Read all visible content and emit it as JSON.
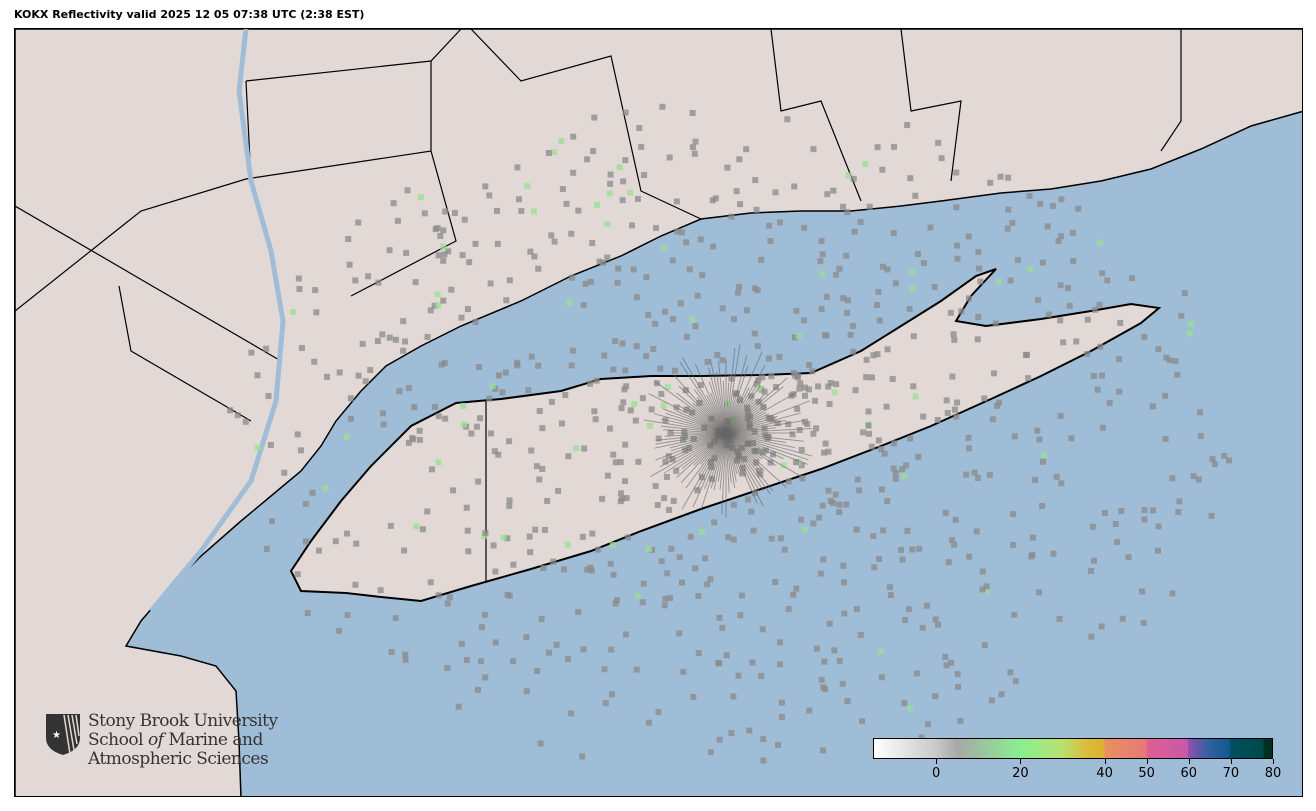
{
  "title": "KOKX Reflectivity valid 2025 12 05 07:38 UTC (2:38 EST)",
  "logo": {
    "line1": "Stony Brook University",
    "line2a": "School ",
    "line2b": "of",
    "line2c": " Marine and",
    "line3": "Atmospheric Sciences"
  },
  "colors": {
    "ocean": "#a0bdd8",
    "land": "#e2d9d7",
    "lakes": "#a8c4dd"
  },
  "colorbar": {
    "range": [
      -15,
      80
    ],
    "ticks": [
      0,
      20,
      40,
      50,
      60,
      70,
      80
    ],
    "tick_labels": [
      "0",
      "20",
      "40",
      "50",
      "60",
      "70",
      "80"
    ],
    "stops": [
      {
        "v": -15,
        "c": "#ffffff"
      },
      {
        "v": 0,
        "c": "#c8c8c8"
      },
      {
        "v": 5,
        "c": "#a8a8a8"
      },
      {
        "v": 20,
        "c": "#88f090"
      },
      {
        "v": 30,
        "c": "#b8e070"
      },
      {
        "v": 35,
        "c": "#d8c040"
      },
      {
        "v": 40,
        "c": "#e0b030"
      },
      {
        "v": 40.01,
        "c": "#e89060"
      },
      {
        "v": 50,
        "c": "#e87878"
      },
      {
        "v": 50.01,
        "c": "#e06090"
      },
      {
        "v": 60,
        "c": "#c858a8"
      },
      {
        "v": 60.01,
        "c": "#9050b0"
      },
      {
        "v": 65,
        "c": "#3060a0"
      },
      {
        "v": 70,
        "c": "#105890"
      },
      {
        "v": 70.01,
        "c": "#005060"
      },
      {
        "v": 78,
        "c": "#004848"
      },
      {
        "v": 78.01,
        "c": "#003020"
      },
      {
        "v": 80,
        "c": "#003020"
      }
    ]
  },
  "radar": {
    "site": "KOKX"
  }
}
